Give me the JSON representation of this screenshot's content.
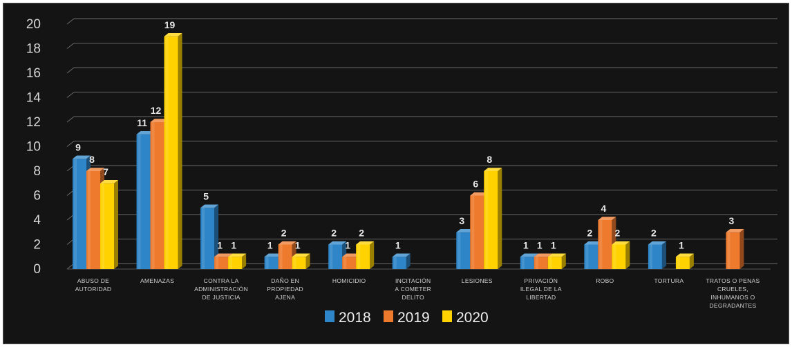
{
  "chart_data": {
    "type": "bar",
    "title": "",
    "xlabel": "",
    "ylabel": "",
    "ylim": [
      0,
      20
    ],
    "yticks": [
      0,
      2,
      4,
      6,
      8,
      10,
      12,
      14,
      16,
      18,
      20
    ],
    "grid": true,
    "legend_position": "bottom",
    "categories": [
      "ABUSO DE AUTORIDAD",
      "AMENAZAS",
      "CONTRA LA ADMINISTRACIÓN DE JUSTICIA",
      "DAÑO EN PROPIEDAD AJENA",
      "HOMICIDIO",
      "INCITACIÓN A COMETER DELITO",
      "LESIONES",
      "PRIVACIÓN ILEGAL DE LA LIBERTAD",
      "ROBO",
      "TORTURA",
      "TRATOS O PENAS CRUELES, INHUMANOS O DEGRADANTES"
    ],
    "category_lines": [
      [
        "ABUSO DE",
        "AUTORIDAD"
      ],
      [
        "AMENAZAS"
      ],
      [
        "CONTRA LA",
        "ADMINISTRACIÓN",
        "DE JUSTICIA"
      ],
      [
        "DAÑO EN",
        "PROPIEDAD",
        "AJENA"
      ],
      [
        "HOMICIDIO"
      ],
      [
        "INCITACIÓN",
        "A COMETER",
        "DELITO"
      ],
      [
        "LESIONES"
      ],
      [
        "PRIVACIÓN",
        "ILEGAL DE LA",
        "LIBERTAD"
      ],
      [
        "ROBO"
      ],
      [
        "TORTURA"
      ],
      [
        "TRATOS O PENAS",
        "CRUELES,",
        "INHUMANOS O",
        "DEGRADANTES"
      ]
    ],
    "series": [
      {
        "name": "2018",
        "color": "#2e86c8",
        "values": [
          9,
          11,
          5,
          1,
          2,
          1,
          3,
          1,
          2,
          2,
          null
        ]
      },
      {
        "name": "2019",
        "color": "#ee7a2e",
        "values": [
          8,
          12,
          1,
          2,
          1,
          null,
          6,
          1,
          4,
          null,
          3
        ]
      },
      {
        "name": "2020",
        "color": "#ffd200",
        "values": [
          7,
          19,
          1,
          1,
          2,
          null,
          8,
          1,
          2,
          1,
          null
        ]
      }
    ]
  }
}
